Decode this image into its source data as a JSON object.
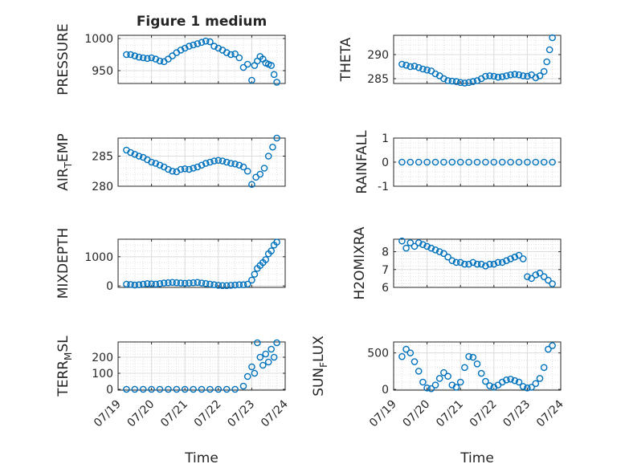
{
  "figure": {
    "title": "Figure 1 medium"
  },
  "chart_data": [
    {
      "type": "scatter",
      "ylabel": "PRESSURE",
      "xlabel": "",
      "xlim": [
        "07/19",
        "07/24"
      ],
      "ylim": [
        930,
        1005
      ],
      "yticks": [
        950,
        1000
      ],
      "ytick_labels": [
        "950",
        "1000"
      ],
      "xticks": [
        "07/19",
        "07/20",
        "07/21",
        "07/22",
        "07/23",
        "07/24"
      ],
      "color": "#0072BD",
      "grid": true,
      "x": [
        "07/19 06:00",
        "07/19 09:00",
        "07/19 12:00",
        "07/19 15:00",
        "07/19 18:00",
        "07/19 21:00",
        "07/20 00:00",
        "07/20 03:00",
        "07/20 06:00",
        "07/20 09:00",
        "07/20 12:00",
        "07/20 15:00",
        "07/20 18:00",
        "07/20 21:00",
        "07/21 00:00",
        "07/21 03:00",
        "07/21 06:00",
        "07/21 09:00",
        "07/21 12:00",
        "07/21 15:00",
        "07/21 18:00",
        "07/21 21:00",
        "07/22 00:00",
        "07/22 03:00",
        "07/22 06:00",
        "07/22 09:00",
        "07/22 12:00",
        "07/22 15:00",
        "07/22 18:00",
        "07/22 21:00",
        "07/23 00:00",
        "07/23 02:00",
        "07/23 04:00",
        "07/23 06:00",
        "07/23 08:00",
        "07/23 10:00",
        "07/23 12:00",
        "07/23 14:00",
        "07/23 16:00",
        "07/23 18:00"
      ],
      "values": [
        975,
        975,
        973,
        971,
        970,
        969,
        970,
        968,
        965,
        964,
        968,
        973,
        978,
        982,
        985,
        988,
        990,
        992,
        994,
        996,
        995,
        988,
        985,
        982,
        978,
        975,
        976,
        970,
        955,
        960,
        935,
        958,
        965,
        972,
        968,
        962,
        960,
        958,
        944,
        932
      ]
    },
    {
      "type": "scatter",
      "ylabel": "THETA",
      "xlabel": "",
      "xlim": [
        "07/19",
        "07/24"
      ],
      "ylim": [
        284,
        294
      ],
      "yticks": [
        285,
        290
      ],
      "ytick_labels": [
        "285",
        "290"
      ],
      "xticks": [
        "07/19",
        "07/20",
        "07/21",
        "07/22",
        "07/23",
        "07/24"
      ],
      "color": "#0072BD",
      "grid": true,
      "x": [
        "07/19 06:00",
        "07/19 09:00",
        "07/19 12:00",
        "07/19 15:00",
        "07/19 18:00",
        "07/19 21:00",
        "07/20 00:00",
        "07/20 03:00",
        "07/20 06:00",
        "07/20 09:00",
        "07/20 12:00",
        "07/20 15:00",
        "07/20 18:00",
        "07/20 21:00",
        "07/21 00:00",
        "07/21 03:00",
        "07/21 06:00",
        "07/21 09:00",
        "07/21 12:00",
        "07/21 15:00",
        "07/21 18:00",
        "07/21 21:00",
        "07/22 00:00",
        "07/22 03:00",
        "07/22 06:00",
        "07/22 09:00",
        "07/22 12:00",
        "07/22 15:00",
        "07/22 18:00",
        "07/22 21:00",
        "07/23 00:00",
        "07/23 03:00",
        "07/23 06:00",
        "07/23 09:00",
        "07/23 12:00",
        "07/23 14:00",
        "07/23 16:00",
        "07/23 18:00"
      ],
      "values": [
        288,
        287.8,
        287.5,
        287.6,
        287.3,
        287,
        286.8,
        286.6,
        286,
        285.6,
        285,
        284.6,
        284.5,
        284.4,
        284.2,
        284.1,
        284.2,
        284.4,
        284.6,
        285,
        285.5,
        285.6,
        285.5,
        285.3,
        285.4,
        285.6,
        285.8,
        285.9,
        285.8,
        285.6,
        285.5,
        285.8,
        285.2,
        285.6,
        286.5,
        288.5,
        291,
        293.5
      ]
    },
    {
      "type": "scatter",
      "ylabel": "AIR_TEMP",
      "xlabel": "",
      "xlim": [
        "07/19",
        "07/24"
      ],
      "ylim": [
        280,
        288
      ],
      "yticks": [
        280,
        285
      ],
      "ytick_labels": [
        "280",
        "285"
      ],
      "xticks": [
        "07/19",
        "07/20",
        "07/21",
        "07/22",
        "07/23",
        "07/24"
      ],
      "color": "#0072BD",
      "grid": true,
      "x": [
        "07/19 06:00",
        "07/19 09:00",
        "07/19 12:00",
        "07/19 15:00",
        "07/19 18:00",
        "07/19 21:00",
        "07/20 00:00",
        "07/20 03:00",
        "07/20 06:00",
        "07/20 09:00",
        "07/20 12:00",
        "07/20 15:00",
        "07/20 18:00",
        "07/20 21:00",
        "07/21 00:00",
        "07/21 03:00",
        "07/21 06:00",
        "07/21 09:00",
        "07/21 12:00",
        "07/21 15:00",
        "07/21 18:00",
        "07/21 21:00",
        "07/22 00:00",
        "07/22 03:00",
        "07/22 06:00",
        "07/22 09:00",
        "07/22 12:00",
        "07/22 15:00",
        "07/22 18:00",
        "07/22 21:00",
        "07/23 00:00",
        "07/23 03:00",
        "07/23 06:00",
        "07/23 09:00",
        "07/23 12:00",
        "07/23 15:00",
        "07/23 18:00"
      ],
      "values": [
        286,
        285.6,
        285.3,
        285,
        284.8,
        284.4,
        284,
        283.8,
        283.5,
        283.2,
        282.8,
        282.5,
        282.4,
        282.8,
        282.9,
        282.8,
        283,
        283.2,
        283.5,
        283.8,
        284,
        284.2,
        284.3,
        284.2,
        284,
        283.8,
        283.7,
        283.5,
        283.2,
        282.5,
        280.3,
        281.5,
        282,
        283,
        285,
        286.5,
        288
      ]
    },
    {
      "type": "scatter",
      "ylabel": "RAINFALL",
      "xlabel": "",
      "xlim": [
        "07/19",
        "07/24"
      ],
      "ylim": [
        -1,
        1
      ],
      "yticks": [
        -1,
        0,
        1
      ],
      "ytick_labels": [
        "-1",
        "0",
        "1"
      ],
      "xticks": [
        "07/19",
        "07/20",
        "07/21",
        "07/22",
        "07/23",
        "07/24"
      ],
      "color": "#0072BD",
      "grid": true,
      "x": [
        "07/19 06:00",
        "07/19 12:00",
        "07/19 18:00",
        "07/20 00:00",
        "07/20 06:00",
        "07/20 12:00",
        "07/20 18:00",
        "07/21 00:00",
        "07/21 06:00",
        "07/21 12:00",
        "07/21 18:00",
        "07/22 00:00",
        "07/22 06:00",
        "07/22 12:00",
        "07/22 18:00",
        "07/23 00:00",
        "07/23 06:00",
        "07/23 12:00",
        "07/23 18:00"
      ],
      "values": [
        0,
        0,
        0,
        0,
        0,
        0,
        0,
        0,
        0,
        0,
        0,
        0,
        0,
        0,
        0,
        0,
        0,
        0,
        0
      ]
    },
    {
      "type": "scatter",
      "ylabel": "MIXDEPTH",
      "xlabel": "",
      "xlim": [
        "07/19",
        "07/24"
      ],
      "ylim": [
        -50,
        1600
      ],
      "yticks": [
        0,
        1000
      ],
      "ytick_labels": [
        "0",
        "1000"
      ],
      "xticks": [
        "07/19",
        "07/20",
        "07/21",
        "07/22",
        "07/23",
        "07/24"
      ],
      "color": "#0072BD",
      "grid": true,
      "x": [
        "07/19 06:00",
        "07/19 09:00",
        "07/19 12:00",
        "07/19 15:00",
        "07/19 18:00",
        "07/19 21:00",
        "07/20 00:00",
        "07/20 03:00",
        "07/20 06:00",
        "07/20 09:00",
        "07/20 12:00",
        "07/20 15:00",
        "07/20 18:00",
        "07/20 21:00",
        "07/21 00:00",
        "07/21 03:00",
        "07/21 06:00",
        "07/21 09:00",
        "07/21 12:00",
        "07/21 15:00",
        "07/21 18:00",
        "07/21 21:00",
        "07/22 00:00",
        "07/22 03:00",
        "07/22 06:00",
        "07/22 09:00",
        "07/22 12:00",
        "07/22 15:00",
        "07/22 18:00",
        "07/22 21:00",
        "07/23 00:00",
        "07/23 02:00",
        "07/23 04:00",
        "07/23 06:00",
        "07/23 08:00",
        "07/23 10:00",
        "07/23 12:00",
        "07/23 14:00",
        "07/23 16:00",
        "07/23 18:00"
      ],
      "values": [
        60,
        50,
        30,
        40,
        60,
        80,
        70,
        60,
        80,
        100,
        110,
        120,
        110,
        100,
        90,
        100,
        110,
        120,
        100,
        80,
        60,
        40,
        20,
        10,
        10,
        20,
        30,
        40,
        40,
        60,
        200,
        400,
        600,
        700,
        800,
        900,
        1100,
        1200,
        1400,
        1500
      ]
    },
    {
      "type": "scatter",
      "ylabel": "H2OMIXRA",
      "xlabel": "",
      "xlim": [
        "07/19",
        "07/24"
      ],
      "ylim": [
        6,
        8.7
      ],
      "yticks": [
        6,
        7,
        8
      ],
      "ytick_labels": [
        "6",
        "7",
        "8"
      ],
      "xticks": [
        "07/19",
        "07/20",
        "07/21",
        "07/22",
        "07/23",
        "07/24"
      ],
      "color": "#0072BD",
      "grid": true,
      "x": [
        "07/19 06:00",
        "07/19 09:00",
        "07/19 12:00",
        "07/19 15:00",
        "07/19 18:00",
        "07/19 21:00",
        "07/20 00:00",
        "07/20 03:00",
        "07/20 06:00",
        "07/20 09:00",
        "07/20 12:00",
        "07/20 15:00",
        "07/20 18:00",
        "07/20 21:00",
        "07/21 00:00",
        "07/21 03:00",
        "07/21 06:00",
        "07/21 09:00",
        "07/21 12:00",
        "07/21 15:00",
        "07/21 18:00",
        "07/21 21:00",
        "07/22 00:00",
        "07/22 03:00",
        "07/22 06:00",
        "07/22 09:00",
        "07/22 12:00",
        "07/22 15:00",
        "07/22 18:00",
        "07/22 21:00",
        "07/23 00:00",
        "07/23 03:00",
        "07/23 06:00",
        "07/23 09:00",
        "07/23 12:00",
        "07/23 15:00",
        "07/23 18:00"
      ],
      "values": [
        8.6,
        8.2,
        8.5,
        8.3,
        8.5,
        8.4,
        8.3,
        8.2,
        8.1,
        8,
        7.9,
        7.7,
        7.5,
        7.4,
        7.4,
        7.3,
        7.3,
        7.4,
        7.3,
        7.3,
        7.2,
        7.3,
        7.3,
        7.4,
        7.4,
        7.5,
        7.6,
        7.7,
        7.8,
        7.6,
        6.6,
        6.5,
        6.7,
        6.8,
        6.6,
        6.4,
        6.2
      ]
    },
    {
      "type": "scatter",
      "ylabel": "TERR_MSL",
      "xlabel": "Time",
      "xlim": [
        "07/19",
        "07/24"
      ],
      "ylim": [
        -5,
        295
      ],
      "yticks": [
        0,
        100,
        200
      ],
      "ytick_labels": [
        "0",
        "100",
        "200"
      ],
      "xticks": [
        "07/19",
        "07/20",
        "07/21",
        "07/22",
        "07/23",
        "07/24"
      ],
      "xtick_labels": [
        "07/19",
        "07/20",
        "07/21",
        "07/22",
        "07/23",
        "07/24"
      ],
      "color": "#0072BD",
      "grid": true,
      "x": [
        "07/19 06:00",
        "07/19 12:00",
        "07/19 18:00",
        "07/20 00:00",
        "07/20 06:00",
        "07/20 12:00",
        "07/20 18:00",
        "07/21 00:00",
        "07/21 06:00",
        "07/21 12:00",
        "07/21 18:00",
        "07/22 00:00",
        "07/22 06:00",
        "07/22 12:00",
        "07/22 18:00",
        "07/22 21:00",
        "07/23 00:00",
        "07/23 02:00",
        "07/23 04:00",
        "07/23 06:00",
        "07/23 08:00",
        "07/23 10:00",
        "07/23 12:00",
        "07/23 14:00",
        "07/23 16:00",
        "07/23 18:00"
      ],
      "values": [
        0,
        0,
        0,
        0,
        0,
        0,
        0,
        0,
        0,
        0,
        0,
        0,
        0,
        0,
        20,
        80,
        140,
        100,
        290,
        200,
        150,
        220,
        170,
        250,
        200,
        290
      ]
    },
    {
      "type": "scatter",
      "ylabel": "SUN_FLUX",
      "xlabel": "Time",
      "xlim": [
        "07/19",
        "07/24"
      ],
      "ylim": [
        -10,
        650
      ],
      "yticks": [
        0,
        500
      ],
      "ytick_labels": [
        "0",
        "500"
      ],
      "xticks": [
        "07/19",
        "07/20",
        "07/21",
        "07/22",
        "07/23",
        "07/24"
      ],
      "xtick_labels": [
        "07/19",
        "07/20",
        "07/21",
        "07/22",
        "07/23",
        "07/24"
      ],
      "color": "#0072BD",
      "grid": true,
      "x": [
        "07/19 06:00",
        "07/19 09:00",
        "07/19 12:00",
        "07/19 15:00",
        "07/19 18:00",
        "07/19 21:00",
        "07/20 00:00",
        "07/20 03:00",
        "07/20 06:00",
        "07/20 09:00",
        "07/20 12:00",
        "07/20 15:00",
        "07/20 18:00",
        "07/20 21:00",
        "07/21 00:00",
        "07/21 03:00",
        "07/21 06:00",
        "07/21 09:00",
        "07/21 12:00",
        "07/21 15:00",
        "07/21 18:00",
        "07/21 21:00",
        "07/22 00:00",
        "07/22 03:00",
        "07/22 06:00",
        "07/22 09:00",
        "07/22 12:00",
        "07/22 15:00",
        "07/22 18:00",
        "07/22 21:00",
        "07/23 00:00",
        "07/23 03:00",
        "07/23 06:00",
        "07/23 09:00",
        "07/23 12:00",
        "07/23 15:00",
        "07/23 18:00"
      ],
      "values": [
        450,
        550,
        500,
        380,
        250,
        100,
        20,
        10,
        60,
        150,
        230,
        180,
        60,
        30,
        100,
        300,
        450,
        440,
        350,
        220,
        110,
        50,
        30,
        60,
        100,
        130,
        140,
        120,
        100,
        40,
        20,
        30,
        80,
        150,
        300,
        550,
        600
      ]
    }
  ]
}
